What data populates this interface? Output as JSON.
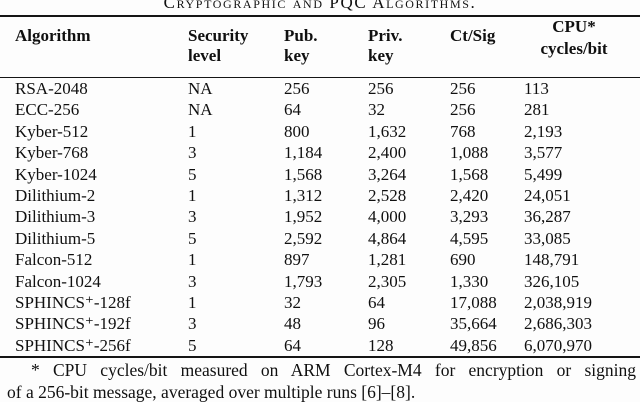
{
  "caption": "Cryptographic and PQC Algorithms.",
  "table": {
    "header": {
      "algorithm": "Algorithm",
      "security_line1": "Security",
      "security_line2": "level",
      "pub_line1": "Pub.",
      "pub_line2": "key",
      "priv_line1": "Priv.",
      "priv_line2": "key",
      "ct_sig": "Ct/Sig",
      "cpu_line1": "CPU*",
      "cpu_line2": "cycles/bit"
    },
    "rows": [
      [
        "RSA-2048",
        "NA",
        "256",
        "256",
        "256",
        "113"
      ],
      [
        "ECC-256",
        "NA",
        "64",
        "32",
        "256",
        "281"
      ],
      [
        "Kyber-512",
        "1",
        "800",
        "1,632",
        "768",
        "2,193"
      ],
      [
        "Kyber-768",
        "3",
        "1,184",
        "2,400",
        "1,088",
        "3,577"
      ],
      [
        "Kyber-1024",
        "5",
        "1,568",
        "3,264",
        "1,568",
        "5,499"
      ],
      [
        "Dilithium-2",
        "1",
        "1,312",
        "2,528",
        "2,420",
        "24,051"
      ],
      [
        "Dilithium-3",
        "3",
        "1,952",
        "4,000",
        "3,293",
        "36,287"
      ],
      [
        "Dilithium-5",
        "5",
        "2,592",
        "4,864",
        "4,595",
        "33,085"
      ],
      [
        "Falcon-512",
        "1",
        "897",
        "1,281",
        "690",
        "148,791"
      ],
      [
        "Falcon-1024",
        "3",
        "1,793",
        "2,305",
        "1,330",
        "326,105"
      ],
      [
        "SPHINCS⁺-128f",
        "1",
        "32",
        "64",
        "17,088",
        "2,038,919"
      ],
      [
        "SPHINCS⁺-192f",
        "3",
        "48",
        "96",
        "35,664",
        "2,686,303"
      ],
      [
        "SPHINCS⁺-256f",
        "5",
        "64",
        "128",
        "49,856",
        "6,070,970"
      ]
    ]
  },
  "footnote": {
    "line1": "* CPU cycles/bit measured on ARM Cortex-M4 for encryption or signing",
    "line2": "of a 256-bit message, averaged over multiple runs [6]–[8]."
  }
}
